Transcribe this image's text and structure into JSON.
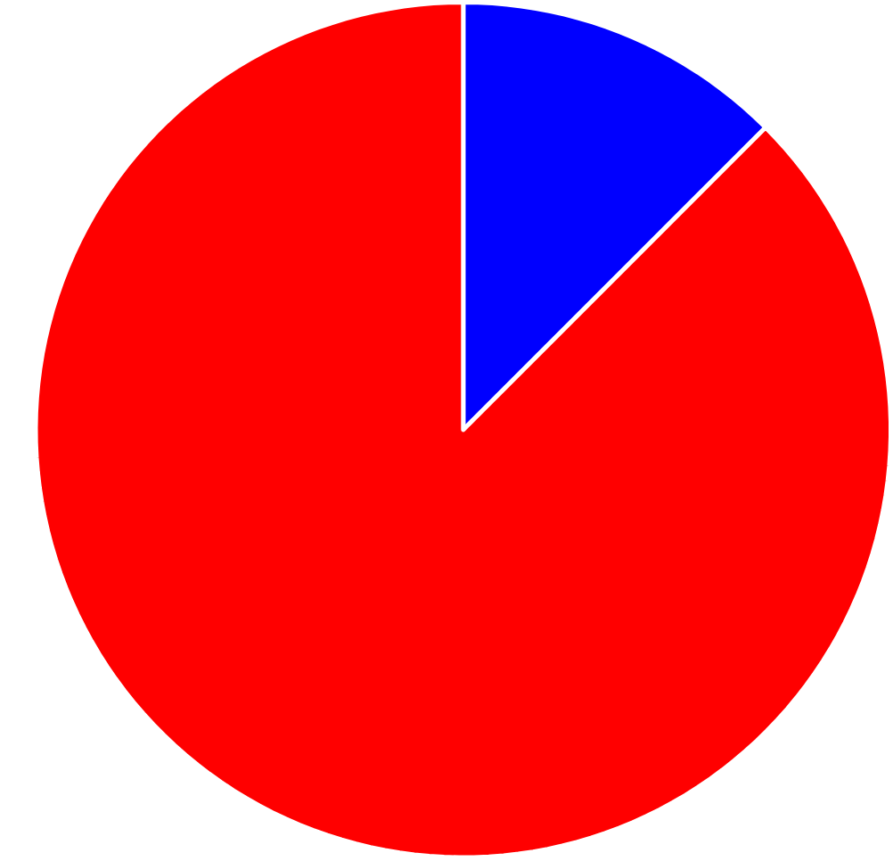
{
  "chart_data": {
    "type": "pie",
    "categories": [
      null,
      null
    ],
    "values": [
      12.5,
      87.5
    ],
    "colors": [
      "#0000ff",
      "#ff0000"
    ]
  }
}
